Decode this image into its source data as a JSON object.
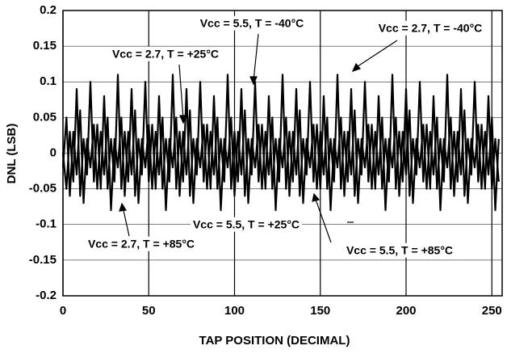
{
  "chart_data": {
    "type": "line",
    "ylabel": "DNL (LSB)",
    "xlabel": "TAP POSITION (DECIMAL)",
    "xlim": [
      0,
      256
    ],
    "xticks": [
      0,
      50,
      100,
      150,
      200,
      250
    ],
    "ylim": [
      -0.2,
      0.2
    ],
    "yticks": [
      -0.2,
      -0.15,
      -0.1,
      -0.05,
      0,
      0.05,
      0.1,
      0.15,
      0.2
    ],
    "grid": true,
    "annotations": [
      "Vcc = 5.5, T = -40°C",
      "Vcc = 2.7, T = -40°C",
      "Vcc = 2.7, T = +25°C",
      "Vcc = 5.5, T = +25°C",
      "Vcc = 2.7, T = +85°C",
      "Vcc = 5.5, T = +85°C"
    ],
    "x": [
      0,
      2,
      4,
      6,
      8,
      10,
      12,
      14,
      16,
      18,
      20,
      22,
      24,
      26,
      28,
      30,
      32,
      34,
      36,
      38,
      40,
      42,
      44,
      46,
      48,
      50,
      52,
      54,
      56,
      58,
      60,
      62,
      64,
      66,
      68,
      70,
      72,
      74,
      76,
      78,
      80,
      82,
      84,
      86,
      88,
      90,
      92,
      94,
      96,
      98,
      100,
      102,
      104,
      106,
      108,
      110,
      112,
      114,
      116,
      118,
      120,
      122,
      124,
      126,
      128,
      130,
      132,
      134,
      136,
      138,
      140,
      142,
      144,
      146,
      148,
      150,
      152,
      154,
      156,
      158,
      160,
      162,
      164,
      166,
      168,
      170,
      172,
      174,
      176,
      178,
      180,
      182,
      184,
      186,
      188,
      190,
      192,
      194,
      196,
      198,
      200,
      202,
      204,
      206,
      208,
      210,
      212,
      214,
      216,
      218,
      220,
      222,
      224,
      226,
      228,
      230,
      232,
      234,
      236,
      238,
      240,
      242,
      244,
      246,
      248,
      250,
      252,
      254
    ],
    "series": [
      {
        "color": "#000000",
        "values": [
          0,
          -0.05,
          0.03,
          -0.04,
          0.09,
          -0.06,
          0.02,
          -0.03,
          0.1,
          -0.04,
          0.04,
          -0.05,
          0.08,
          -0.05,
          0.02,
          -0.04,
          0.11,
          -0.05,
          0.03,
          -0.04,
          0.09,
          -0.06,
          0.02,
          -0.03,
          0.1,
          -0.04,
          0.04,
          -0.05,
          0.08,
          -0.05,
          0.02,
          -0.04,
          0.11,
          -0.05,
          0.03,
          -0.04,
          0.09,
          -0.06,
          0.02,
          -0.03,
          0.1,
          -0.04,
          0.04,
          -0.05,
          0.08,
          -0.05,
          0.02,
          -0.04,
          0.11,
          -0.05,
          0.03,
          -0.04,
          0.09,
          -0.06,
          0.02,
          -0.03,
          0.1,
          -0.04,
          0.04,
          -0.05,
          0.08,
          -0.05,
          0.02,
          -0.04,
          0.11,
          -0.05,
          0.03,
          -0.04,
          0.09,
          -0.06,
          0.02,
          -0.03,
          0.1,
          -0.04,
          0.04,
          -0.05,
          0.08,
          -0.05,
          0.02,
          -0.04,
          0.11,
          -0.05,
          0.03,
          -0.04,
          0.09,
          -0.06,
          0.02,
          -0.03,
          0.1,
          -0.04,
          0.04,
          -0.05,
          0.08,
          -0.05,
          0.02,
          -0.04,
          0.11,
          -0.05,
          0.03,
          -0.04,
          0.09,
          -0.06,
          0.02,
          -0.03,
          0.1,
          -0.04,
          0.04,
          -0.05,
          0.08,
          -0.05,
          0.02,
          -0.04,
          0.11,
          -0.05,
          0.03,
          -0.04,
          0.09,
          -0.06,
          0.02,
          -0.03,
          0.1,
          -0.04,
          0.04,
          -0.05,
          0.08,
          -0.05,
          0.02,
          -0.04
        ]
      },
      {
        "color": "#000000",
        "values": [
          -0.02,
          0.05,
          -0.06,
          0.03,
          -0.03,
          0.06,
          -0.07,
          0.02,
          -0.02,
          0.04,
          -0.05,
          0.03,
          -0.03,
          0.05,
          -0.08,
          0.02,
          -0.02,
          0.05,
          -0.06,
          0.03,
          -0.03,
          0.06,
          -0.07,
          0.02,
          -0.02,
          0.04,
          -0.05,
          0.03,
          -0.03,
          0.05,
          -0.08,
          0.02,
          -0.02,
          0.05,
          -0.06,
          0.03,
          -0.03,
          0.06,
          -0.07,
          0.02,
          -0.02,
          0.04,
          -0.05,
          0.03,
          -0.03,
          0.05,
          -0.08,
          0.02,
          -0.02,
          0.05,
          -0.06,
          0.03,
          -0.03,
          0.06,
          -0.07,
          0.02,
          -0.02,
          0.04,
          -0.05,
          0.03,
          -0.03,
          0.05,
          -0.08,
          0.02,
          -0.02,
          0.05,
          -0.06,
          0.03,
          -0.03,
          0.06,
          -0.07,
          0.02,
          -0.02,
          0.04,
          -0.05,
          0.03,
          -0.03,
          0.05,
          -0.08,
          0.02,
          -0.02,
          0.05,
          -0.06,
          0.03,
          -0.03,
          0.06,
          -0.07,
          0.02,
          -0.02,
          0.04,
          -0.05,
          0.03,
          -0.03,
          0.05,
          -0.08,
          0.02,
          -0.02,
          0.05,
          -0.06,
          0.03,
          -0.03,
          0.06,
          -0.07,
          0.02,
          -0.02,
          0.04,
          -0.05,
          0.03,
          -0.03,
          0.05,
          -0.08,
          0.02,
          -0.02,
          0.05,
          -0.06,
          0.03,
          -0.03,
          0.06,
          -0.07,
          0.02,
          -0.02,
          0.04,
          -0.05,
          0.03,
          -0.03,
          0.05,
          -0.08,
          0.02
        ]
      }
    ]
  }
}
